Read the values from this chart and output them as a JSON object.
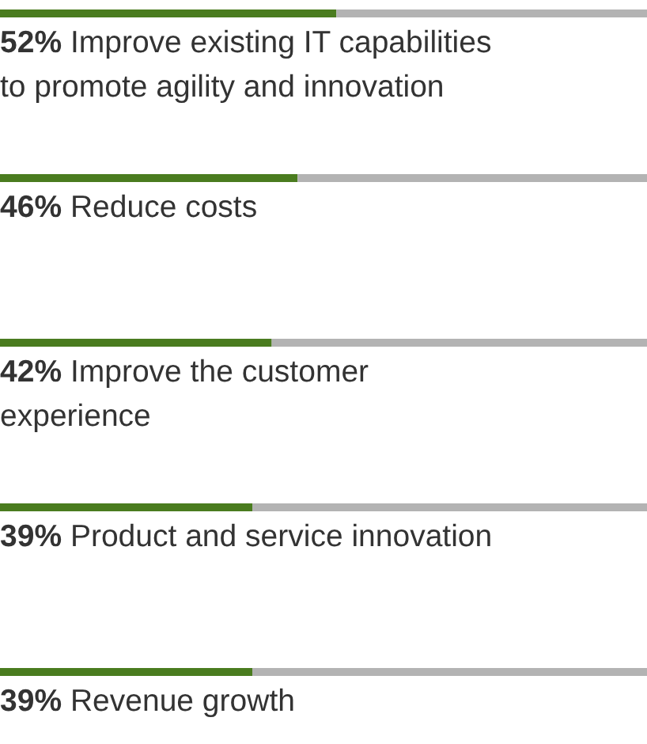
{
  "chart_data": {
    "type": "bar",
    "orientation": "horizontal",
    "stacked": true,
    "categories": [
      "Improve existing IT capabilities to promote agility and innovation",
      "Reduce costs",
      "Improve the customer experience",
      "Product and service innovation",
      "Revenue growth"
    ],
    "series": [
      {
        "color": "#4a7c1f",
        "values": [
          52,
          46,
          42,
          39,
          39
        ],
        "value_labels": [
          "52%",
          "46%",
          "42%",
          "39%",
          "39%"
        ]
      },
      {
        "color": "#b3b3b3",
        "values": [
          48,
          54,
          58,
          61,
          61
        ]
      }
    ],
    "xlim": [
      0,
      100
    ]
  }
}
